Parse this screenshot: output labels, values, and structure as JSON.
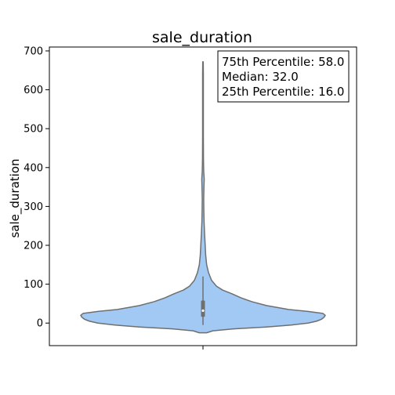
{
  "chart_data": {
    "type": "violin",
    "title": "sale_duration",
    "xlabel": "",
    "ylabel": "sale_duration",
    "ylim": [
      -58,
      710
    ],
    "yticks": [
      0,
      100,
      200,
      300,
      400,
      500,
      600,
      700
    ],
    "grid": false,
    "fill_color": "#a1c9f4",
    "outline_color": "#6f6f6f",
    "box": {
      "whisker_low": -5,
      "q1": 16.0,
      "median": 32.0,
      "q3": 58.0,
      "whisker_high": 120
    },
    "density_profile": [
      {
        "y": -25,
        "width": 0.03
      },
      {
        "y": -20,
        "width": 0.08
      },
      {
        "y": -15,
        "width": 0.25
      },
      {
        "y": -10,
        "width": 0.52
      },
      {
        "y": -5,
        "width": 0.72
      },
      {
        "y": 0,
        "width": 0.86
      },
      {
        "y": 5,
        "width": 0.93
      },
      {
        "y": 10,
        "width": 0.97
      },
      {
        "y": 15,
        "width": 0.99
      },
      {
        "y": 20,
        "width": 1.0
      },
      {
        "y": 25,
        "width": 0.98
      },
      {
        "y": 30,
        "width": 0.86
      },
      {
        "y": 35,
        "width": 0.7
      },
      {
        "y": 45,
        "width": 0.52
      },
      {
        "y": 55,
        "width": 0.4
      },
      {
        "y": 65,
        "width": 0.31
      },
      {
        "y": 75,
        "width": 0.24
      },
      {
        "y": 85,
        "width": 0.16
      },
      {
        "y": 95,
        "width": 0.11
      },
      {
        "y": 110,
        "width": 0.07
      },
      {
        "y": 130,
        "width": 0.045
      },
      {
        "y": 150,
        "width": 0.03
      },
      {
        "y": 175,
        "width": 0.022
      },
      {
        "y": 200,
        "width": 0.018
      },
      {
        "y": 230,
        "width": 0.013
      },
      {
        "y": 260,
        "width": 0.009
      },
      {
        "y": 290,
        "width": 0.007
      },
      {
        "y": 320,
        "width": 0.006
      },
      {
        "y": 350,
        "width": 0.008
      },
      {
        "y": 370,
        "width": 0.01
      },
      {
        "y": 390,
        "width": 0.006
      },
      {
        "y": 420,
        "width": 0.004
      },
      {
        "y": 480,
        "width": 0.003
      },
      {
        "y": 560,
        "width": 0.003
      },
      {
        "y": 640,
        "width": 0.003
      },
      {
        "y": 672,
        "width": 0.002
      }
    ],
    "annotations": {
      "q3_label": "75th Percentile: 58.0",
      "median_label": "Median: 32.0",
      "q1_label": "25th Percentile: 16.0"
    }
  }
}
